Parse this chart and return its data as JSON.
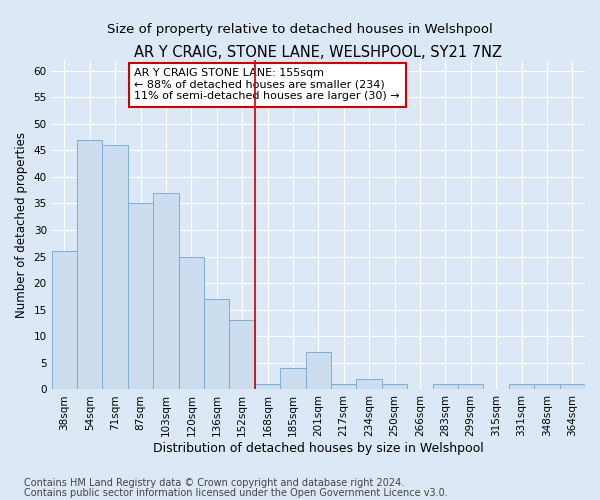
{
  "title": "AR Y CRAIG, STONE LANE, WELSHPOOL, SY21 7NZ",
  "subtitle": "Size of property relative to detached houses in Welshpool",
  "xlabel": "Distribution of detached houses by size in Welshpool",
  "ylabel": "Number of detached properties",
  "categories": [
    "38sqm",
    "54sqm",
    "71sqm",
    "87sqm",
    "103sqm",
    "120sqm",
    "136sqm",
    "152sqm",
    "168sqm",
    "185sqm",
    "201sqm",
    "217sqm",
    "234sqm",
    "250sqm",
    "266sqm",
    "283sqm",
    "299sqm",
    "315sqm",
    "331sqm",
    "348sqm",
    "364sqm"
  ],
  "values": [
    26,
    47,
    46,
    35,
    37,
    25,
    17,
    13,
    1,
    4,
    7,
    1,
    2,
    1,
    0,
    1,
    1,
    0,
    1,
    1,
    1
  ],
  "bar_color": "#ccddf0",
  "bar_edgecolor": "#7bafd4",
  "bg_color": "#dce8f5",
  "grid_color": "#ffffff",
  "vline_x": 7.5,
  "vline_color": "#cc0000",
  "annotation_title": "AR Y CRAIG STONE LANE: 155sqm",
  "annotation_line1": "← 88% of detached houses are smaller (234)",
  "annotation_line2": "11% of semi-detached houses are larger (30) →",
  "annotation_box_color": "#ffffff",
  "annotation_box_edgecolor": "#cc0000",
  "ylim": [
    0,
    62
  ],
  "yticks": [
    0,
    5,
    10,
    15,
    20,
    25,
    30,
    35,
    40,
    45,
    50,
    55,
    60
  ],
  "footer1": "Contains HM Land Registry data © Crown copyright and database right 2024.",
  "footer2": "Contains public sector information licensed under the Open Government Licence v3.0.",
  "title_fontsize": 10.5,
  "subtitle_fontsize": 9.5,
  "xlabel_fontsize": 9,
  "ylabel_fontsize": 8.5,
  "tick_fontsize": 7.5,
  "annotation_fontsize": 8,
  "footer_fontsize": 7
}
